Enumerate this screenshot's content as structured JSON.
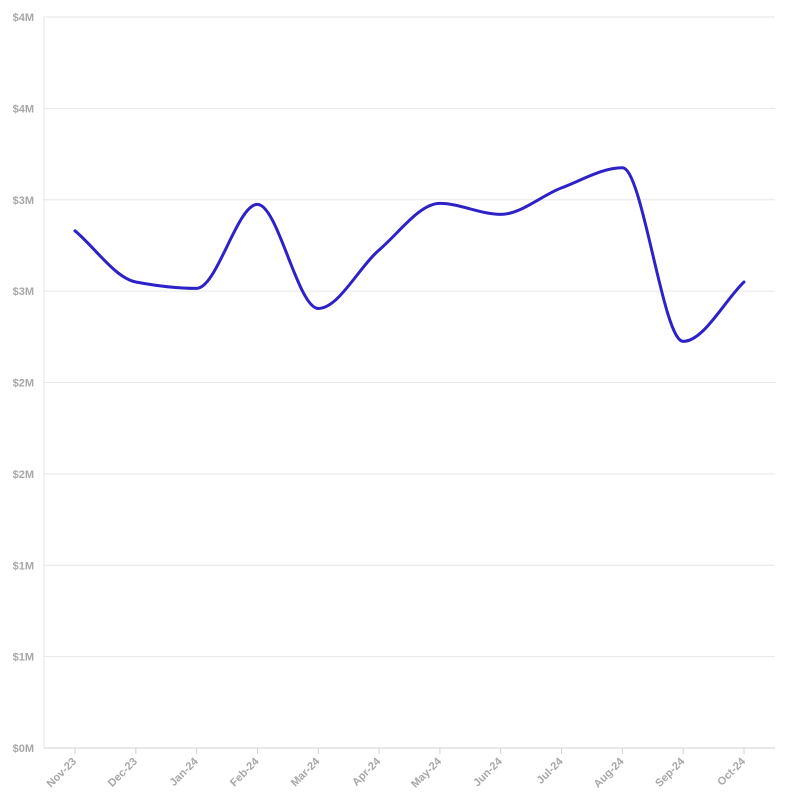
{
  "chart_data": {
    "type": "line",
    "title": "",
    "xlabel": "",
    "ylabel": "",
    "x": [
      "Nov-23",
      "Dec-23",
      "Jan-24",
      "Feb-24",
      "Mar-24",
      "Apr-24",
      "May-24",
      "Jun-24",
      "Jul-24",
      "Aug-24",
      "Sep-24",
      "Oct-24"
    ],
    "series": [
      {
        "values": [
          2830000,
          2550000,
          2515000,
          2975000,
          2405000,
          2725000,
          2980000,
          2920000,
          3065000,
          3175000,
          2225000,
          2550000
        ],
        "color": "#2d22c8"
      }
    ],
    "ylim": [
      0,
      4000000
    ],
    "y_ticks": [
      0,
      500000,
      1000000,
      1500000,
      2000000,
      2500000,
      3000000,
      3500000,
      4000000
    ],
    "y_tick_labels": [
      "$0M",
      "$1M",
      "$1M",
      "$2M",
      "$2M",
      "$3M",
      "$3M",
      "$4M",
      "$4M"
    ],
    "grid": true,
    "legend": "none"
  }
}
